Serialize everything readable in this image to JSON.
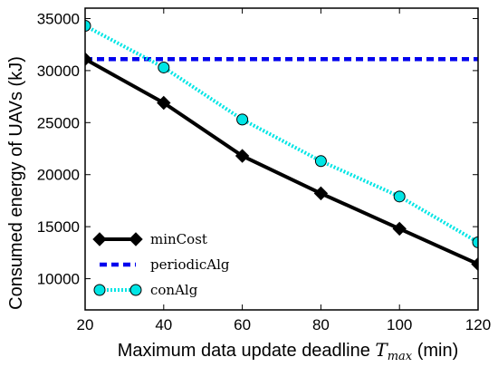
{
  "chart_data": {
    "type": "line",
    "xlabel": "Maximum data update deadline",
    "xlabel_math": "T",
    "xlabel_sub": "max",
    "xlabel_unit": "(min)",
    "ylabel": "Consumed energy of UAVs (kJ)",
    "x": [
      20,
      40,
      60,
      80,
      100,
      120
    ],
    "xlim": [
      20,
      120
    ],
    "ylim": [
      7000,
      36000
    ],
    "xticks": [
      20,
      40,
      60,
      80,
      100,
      120
    ],
    "yticks": [
      10000,
      15000,
      20000,
      25000,
      30000,
      35000
    ],
    "grid": false,
    "legend_position": "lower-left",
    "series": [
      {
        "name": "minCost",
        "values": [
          31100,
          26900,
          21800,
          18200,
          14800,
          11400
        ],
        "color": "#000000",
        "style": "solid",
        "marker": "diamond"
      },
      {
        "name": "periodicAlg",
        "values": [
          31100,
          31100,
          31100,
          31100,
          31100,
          31100
        ],
        "color": "#0000ee",
        "style": "dashed",
        "marker": "none"
      },
      {
        "name": "conAlg",
        "values": [
          34300,
          30300,
          25300,
          21300,
          17900,
          13500
        ],
        "color": "#00e5e5",
        "style": "dotted",
        "marker": "circle"
      }
    ]
  }
}
